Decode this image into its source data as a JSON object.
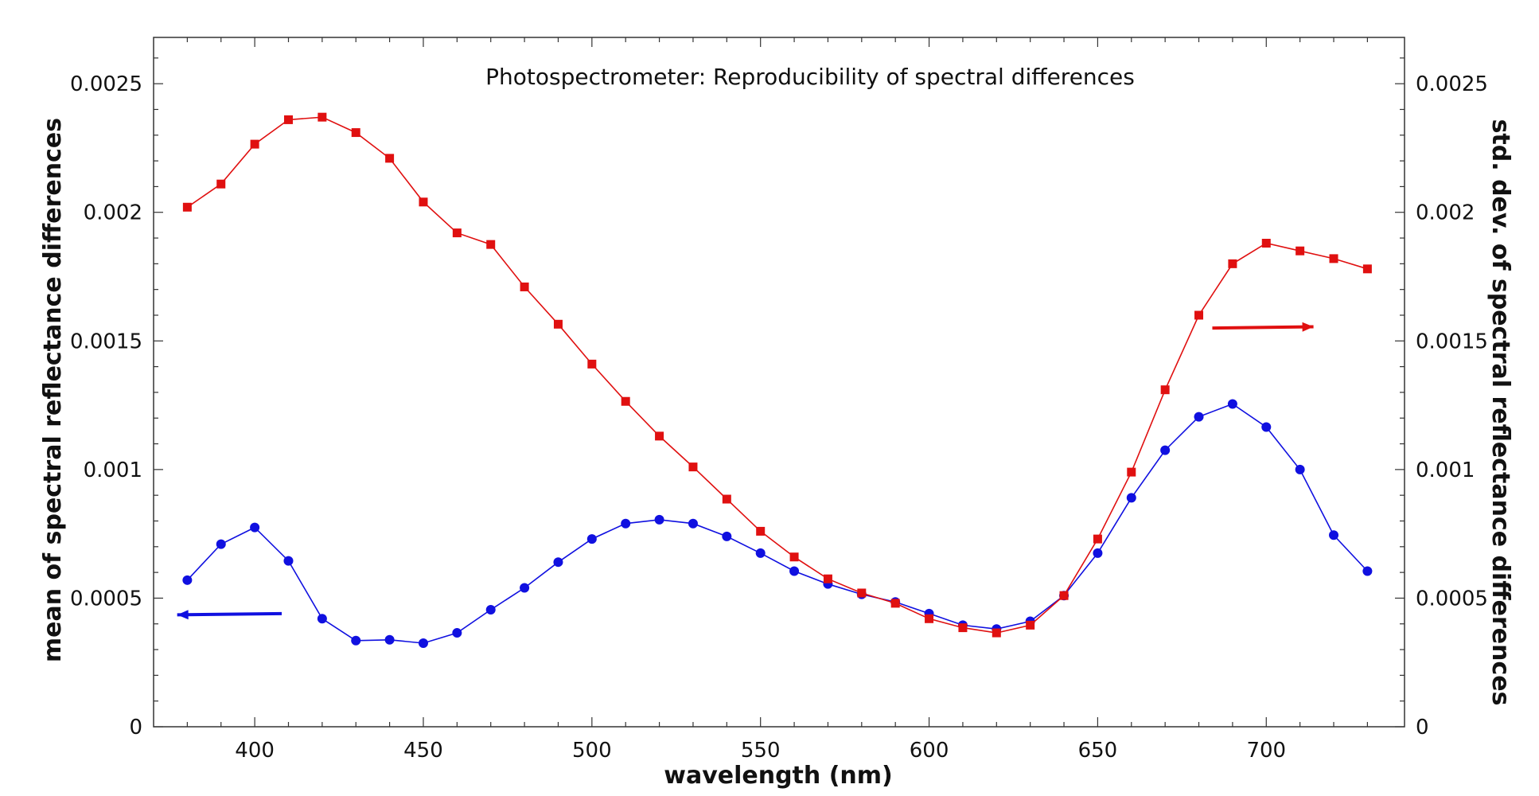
{
  "chart_data": {
    "type": "line",
    "title": "Photospectrometer: Reproducibility of spectral differences",
    "xlabel": "wavelength (nm)",
    "ylabel": "mean of spectral reflectance differences",
    "y2label": "std. dev. of spectral reflectance differences",
    "xlim": [
      370,
      741
    ],
    "ylim": [
      0,
      0.00268
    ],
    "y2lim": [
      0,
      0.00268
    ],
    "x_ticks": [
      400,
      450,
      500,
      550,
      600,
      650,
      700
    ],
    "x_tick_labels": [
      "400",
      "450",
      "500",
      "550",
      "600",
      "650",
      "700"
    ],
    "y_ticks": [
      0,
      0.0005,
      0.001,
      0.0015,
      0.002,
      0.0025
    ],
    "y_tick_labels": [
      "0",
      "0.0005",
      "0.001",
      "0.0015",
      "0.002",
      "0.0025"
    ],
    "y2_ticks": [
      0,
      0.0005,
      0.001,
      0.0015,
      0.002,
      0.0025
    ],
    "y2_tick_labels": [
      "0",
      "0.0005",
      "0.001",
      "0.0015",
      "0.002",
      "0.0025"
    ],
    "x": [
      380,
      390,
      400,
      410,
      420,
      430,
      440,
      450,
      460,
      470,
      480,
      490,
      500,
      510,
      520,
      530,
      540,
      550,
      560,
      570,
      580,
      590,
      600,
      610,
      620,
      630,
      640,
      650,
      660,
      670,
      680,
      690,
      700,
      710,
      720,
      730
    ],
    "series": [
      {
        "name": "mean",
        "axis": "left",
        "color": "#1010e0",
        "marker": "circle",
        "values": [
          0.00057,
          0.00071,
          0.000775,
          0.000645,
          0.00042,
          0.000335,
          0.000338,
          0.000325,
          0.000365,
          0.000455,
          0.00054,
          0.00064,
          0.00073,
          0.00079,
          0.000805,
          0.00079,
          0.00074,
          0.000675,
          0.000605,
          0.000555,
          0.000515,
          0.000485,
          0.00044,
          0.000395,
          0.00038,
          0.00041,
          0.00051,
          0.000675,
          0.00089,
          0.001075,
          0.001205,
          0.001255,
          0.001165,
          0.001,
          0.000745,
          0.000605
        ]
      },
      {
        "name": "std. dev.",
        "axis": "right",
        "color": "#e01010",
        "marker": "square",
        "values": [
          0.00202,
          0.00211,
          0.002265,
          0.00236,
          0.00237,
          0.00231,
          0.00221,
          0.00204,
          0.00192,
          0.001875,
          0.00171,
          0.001565,
          0.00141,
          0.001265,
          0.00113,
          0.00101,
          0.000885,
          0.00076,
          0.00066,
          0.000575,
          0.00052,
          0.00048,
          0.00042,
          0.000385,
          0.000365,
          0.000395,
          0.00051,
          0.00073,
          0.00099,
          0.00131,
          0.0016,
          0.0018,
          0.00188,
          0.00185,
          0.00182,
          0.00178
        ]
      }
    ],
    "annotations": [
      {
        "type": "arrow",
        "direction": "left",
        "color": "#1010e0",
        "refers_to": "mean",
        "from": [
          408,
          0.00044
        ],
        "to": [
          377,
          0.000435
        ]
      },
      {
        "type": "arrow",
        "direction": "right",
        "color": "#e01010",
        "refers_to": "std. dev.",
        "from": [
          684,
          0.00155
        ],
        "to": [
          714,
          0.001555
        ]
      }
    ],
    "grid": false,
    "legend": "none"
  }
}
